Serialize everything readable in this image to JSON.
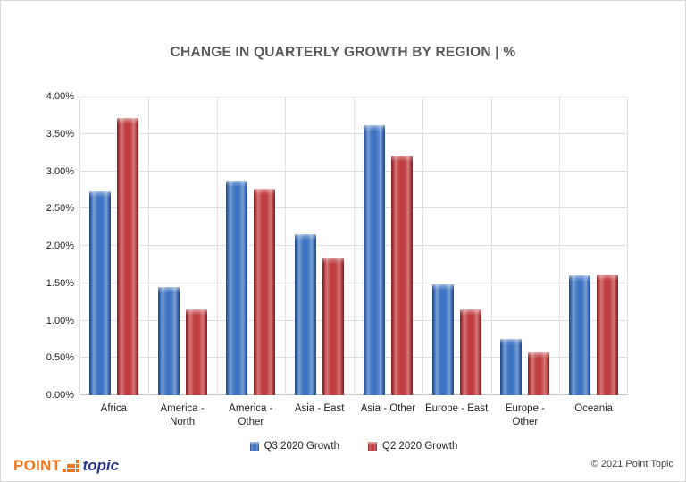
{
  "title": "CHANGE IN QUARTERLY GROWTH BY REGION | %",
  "chart_data": {
    "type": "bar",
    "title": "CHANGE IN QUARTERLY GROWTH BY REGION | %",
    "categories": [
      "Africa",
      "America - North",
      "America - Other",
      "Asia - East",
      "Asia - Other",
      "Europe - East",
      "Europe - Other",
      "Oceania"
    ],
    "series": [
      {
        "name": "Q3 2020 Growth",
        "color": "#3b72c2",
        "values": [
          2.73,
          1.45,
          2.87,
          2.15,
          3.62,
          1.48,
          0.75,
          1.61
        ]
      },
      {
        "name": "Q2 2020 Growth",
        "color": "#c03a3c",
        "values": [
          3.71,
          1.15,
          2.77,
          1.85,
          3.21,
          1.15,
          0.58,
          1.62
        ]
      }
    ],
    "xlabel": "",
    "ylabel": "",
    "unit": "%",
    "ylim": [
      0,
      4
    ],
    "ytick_step": 0.5,
    "ytick_labels": [
      "0.00%",
      "0.50%",
      "1.00%",
      "1.50%",
      "2.00%",
      "2.50%",
      "3.00%",
      "3.50%",
      "4.00%"
    ],
    "grid": "horizontal gridlines + vertical category boundary lines",
    "legend_position": "bottom"
  },
  "footer": {
    "logo": {
      "point": "POINT",
      "topic": "topic",
      "orange": "#f0731e",
      "navy": "#27348b"
    },
    "copyright": "© 2021 Point Topic"
  }
}
